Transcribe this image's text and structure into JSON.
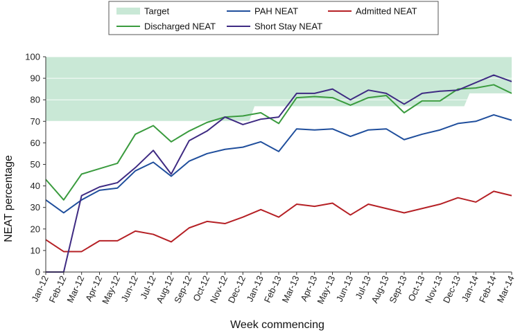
{
  "chart_data": {
    "type": "line",
    "xlabel": "Week commencing",
    "ylabel": "NEAT percentage",
    "ylim": [
      0,
      100
    ],
    "yticks": [
      0,
      10,
      20,
      30,
      40,
      50,
      60,
      70,
      80,
      90,
      100
    ],
    "grid": true,
    "legend": "top",
    "categories": [
      "Jan-12",
      "Feb-12",
      "Mar-12",
      "Apr-12",
      "May-12",
      "Jun-12",
      "Jul-12",
      "Aug-12",
      "Sep-12",
      "Oct-12",
      "Nov-12",
      "Dec-12",
      "Jan-13",
      "Feb-13",
      "Mar-13",
      "Apr-13",
      "May-13",
      "Jun-13",
      "Jul-13",
      "Aug-13",
      "Sep-13",
      "Oct-13",
      "Nov-13",
      "Dec-13",
      "Jan-14",
      "Feb-14",
      "Mar-14"
    ],
    "target": {
      "name": "Target",
      "color": "#c9e8d6",
      "lower": [
        70,
        70,
        70,
        70,
        70,
        70,
        70,
        70,
        70,
        70,
        70,
        70,
        77,
        77,
        77,
        77,
        77,
        77,
        77,
        77,
        77,
        77,
        77,
        77,
        83,
        83,
        83
      ],
      "upper": 100
    },
    "series": [
      {
        "name": "PAH NEAT",
        "color": "#1f4e9c",
        "values": [
          33.5,
          27.5,
          33.5,
          38,
          39,
          47,
          51,
          44.5,
          51.5,
          55,
          57,
          58,
          60.5,
          56,
          66.5,
          66,
          66.5,
          63,
          66,
          66.5,
          61.5,
          64,
          66,
          69,
          70,
          73,
          70.5
        ]
      },
      {
        "name": "Admitted NEAT",
        "color": "#b52025",
        "values": [
          15,
          9.5,
          9.5,
          14.5,
          14.5,
          19,
          17.5,
          14,
          20.5,
          23.5,
          22.5,
          25.5,
          29,
          25.5,
          31.5,
          30.5,
          32,
          26.5,
          31.5,
          29.5,
          27.5,
          29.5,
          31.5,
          34.5,
          32.5,
          37.5,
          35.5
        ]
      },
      {
        "name": "Discharged NEAT",
        "color": "#3a9b3e",
        "values": [
          43,
          33.5,
          45.5,
          48,
          50.5,
          64,
          68,
          60.5,
          65.5,
          69.5,
          72,
          72.5,
          74,
          69,
          81,
          81.5,
          81,
          77.5,
          81,
          82,
          74,
          79.5,
          79.5,
          85,
          85.5,
          87,
          83
        ]
      },
      {
        "name": "Short Stay NEAT",
        "color": "#3e2a82",
        "values": [
          0,
          0,
          35.5,
          39.5,
          41.5,
          48.5,
          56.5,
          45.5,
          61,
          65.5,
          72,
          68.5,
          71,
          72,
          83,
          83,
          85,
          80,
          84.5,
          83,
          78,
          83,
          84,
          84.5,
          88,
          91.5,
          88.5
        ]
      }
    ],
    "legend_entries": [
      {
        "label": "Target",
        "kind": "patch",
        "color": "#c9e8d6"
      },
      {
        "label": "PAH NEAT",
        "kind": "line",
        "color": "#1f4e9c"
      },
      {
        "label": "Admitted NEAT",
        "kind": "line",
        "color": "#b52025"
      },
      {
        "label": "Discharged NEAT",
        "kind": "line",
        "color": "#3a9b3e"
      },
      {
        "label": "Short Stay NEAT",
        "kind": "line",
        "color": "#3e2a82"
      }
    ]
  }
}
